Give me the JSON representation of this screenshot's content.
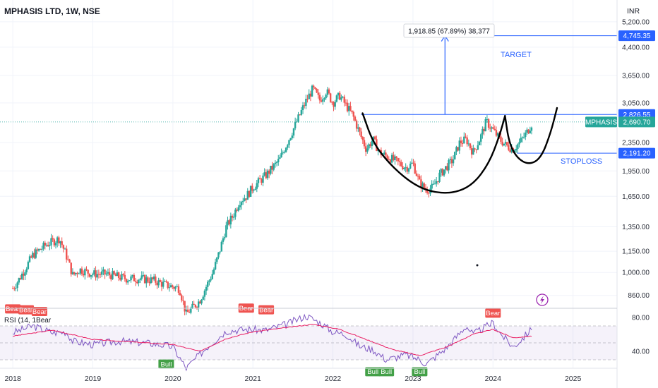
{
  "chart_data": {
    "type": "candlestick",
    "title": "MPHASIS LTD, 1W, NSE",
    "currency": "INR",
    "y_scale": "log",
    "ylim": [
      790,
      6000
    ],
    "y_ticks": [
      "5,200.00",
      "4,400.00",
      "3,650.00",
      "3,050.00",
      "2,350.00",
      "1,950.00",
      "1,650.00",
      "1,350.00",
      "1,150.00",
      "1,000.00",
      "860.00"
    ],
    "x_ticks": [
      "2018",
      "2019",
      "2020",
      "2021",
      "2022",
      "2023",
      "2024",
      "2025"
    ],
    "price_labels": [
      {
        "name": "target",
        "text": "4,745.35",
        "value": 4745.35,
        "color": "#2962ff"
      },
      {
        "name": "resistance",
        "text": "2,826.55",
        "value": 2826.55,
        "color": "#2962ff"
      },
      {
        "name": "symbol",
        "text": "MPHASIS",
        "color": "#26a69a"
      },
      {
        "name": "last",
        "text": "2,690.70",
        "value": 2690.7,
        "color": "#26a69a"
      },
      {
        "name": "stoploss",
        "text": "2,191.20",
        "value": 2191.2,
        "color": "#2962ff"
      }
    ],
    "annotations": {
      "measure": "1,918.85 (67.89%) 38,377",
      "target": "TARGET",
      "stoploss": "STOPLOSS"
    },
    "close_path": [
      [
        "2018-01",
        900
      ],
      [
        "2018-02",
        960
      ],
      [
        "2018-04",
        1120
      ],
      [
        "2018-06",
        1200
      ],
      [
        "2018-08",
        1250
      ],
      [
        "2018-09",
        1120
      ],
      [
        "2018-10",
        980
      ],
      [
        "2018-11",
        1020
      ],
      [
        "2019-01",
        990
      ],
      [
        "2019-03",
        990
      ],
      [
        "2019-06",
        960
      ],
      [
        "2019-08",
        960
      ],
      [
        "2019-10",
        950
      ],
      [
        "2019-12",
        920
      ],
      [
        "2020-02",
        900
      ],
      [
        "2020-03",
        760
      ],
      [
        "2020-05",
        830
      ],
      [
        "2020-07",
        1000
      ],
      [
        "2020-08",
        1150
      ],
      [
        "2020-09",
        1350
      ],
      [
        "2020-10",
        1450
      ],
      [
        "2020-11",
        1600
      ],
      [
        "2020-12",
        1650
      ],
      [
        "2021-01",
        1750
      ],
      [
        "2021-03",
        1900
      ],
      [
        "2021-05",
        2100
      ],
      [
        "2021-07",
        2550
      ],
      [
        "2021-09",
        3100
      ],
      [
        "2021-10",
        3350
      ],
      [
        "2021-11",
        3100
      ],
      [
        "2021-12",
        3300
      ],
      [
        "2022-01",
        3050
      ],
      [
        "2022-02",
        3200
      ],
      [
        "2022-04",
        2800
      ],
      [
        "2022-05",
        2500
      ],
      [
        "2022-06",
        2250
      ],
      [
        "2022-07",
        2400
      ],
      [
        "2022-08",
        2200
      ],
      [
        "2022-10",
        2100
      ],
      [
        "2022-12",
        1990
      ],
      [
        "2023-01",
        2050
      ],
      [
        "2023-02",
        1800
      ],
      [
        "2023-03",
        1720
      ],
      [
        "2023-04",
        1750
      ],
      [
        "2023-05",
        1900
      ],
      [
        "2023-06",
        2000
      ],
      [
        "2023-07",
        2100
      ],
      [
        "2023-08",
        2350
      ],
      [
        "2023-09",
        2400
      ],
      [
        "2023-10",
        2200
      ],
      [
        "2023-11",
        2400
      ],
      [
        "2023-12",
        2700
      ],
      [
        "2024-01",
        2550
      ],
      [
        "2024-02",
        2400
      ],
      [
        "2024-03",
        2300
      ],
      [
        "2024-04",
        2250
      ],
      [
        "2024-05",
        2350
      ],
      [
        "2024-06",
        2500
      ],
      [
        "2024-07",
        2700
      ]
    ],
    "rsi": {
      "label": "RSI (14, 1Bear",
      "y_ticks": [
        "80.00",
        "40.00"
      ],
      "ylim": [
        20,
        90
      ],
      "band": [
        30,
        70
      ],
      "values": [
        [
          "2018-01",
          62
        ],
        [
          "2018-04",
          70
        ],
        [
          "2018-07",
          62
        ],
        [
          "2018-09",
          63
        ],
        [
          "2018-10",
          52
        ],
        [
          "2019-01",
          48
        ],
        [
          "2019-05",
          52
        ],
        [
          "2019-09",
          50
        ],
        [
          "2019-12",
          47
        ],
        [
          "2020-01",
          45
        ],
        [
          "2020-03",
          20
        ],
        [
          "2020-06",
          44
        ],
        [
          "2020-09",
          64
        ],
        [
          "2020-12",
          66
        ],
        [
          "2021-03",
          65
        ],
        [
          "2021-06",
          72
        ],
        [
          "2021-09",
          82
        ],
        [
          "2021-11",
          74
        ],
        [
          "2022-01",
          63
        ],
        [
          "2022-03",
          60
        ],
        [
          "2022-05",
          46
        ],
        [
          "2022-07",
          42
        ],
        [
          "2022-09",
          30
        ],
        [
          "2022-12",
          36
        ],
        [
          "2023-02",
          30
        ],
        [
          "2023-03",
          25
        ],
        [
          "2023-06",
          44
        ],
        [
          "2023-09",
          70
        ],
        [
          "2023-10",
          60
        ],
        [
          "2024-01",
          74
        ],
        [
          "2024-02",
          62
        ],
        [
          "2024-04",
          45
        ],
        [
          "2024-05",
          52
        ],
        [
          "2024-07",
          68
        ]
      ],
      "ma": [
        [
          "2018-01",
          58
        ],
        [
          "2018-07",
          65
        ],
        [
          "2019-01",
          54
        ],
        [
          "2019-09",
          50
        ],
        [
          "2020-01",
          48
        ],
        [
          "2020-05",
          40
        ],
        [
          "2020-09",
          55
        ],
        [
          "2021-01",
          63
        ],
        [
          "2021-06",
          68
        ],
        [
          "2021-10",
          72
        ],
        [
          "2022-02",
          66
        ],
        [
          "2022-06",
          54
        ],
        [
          "2022-10",
          42
        ],
        [
          "2023-02",
          35
        ],
        [
          "2023-06",
          45
        ],
        [
          "2023-10",
          60
        ],
        [
          "2024-01",
          66
        ],
        [
          "2024-04",
          56
        ],
        [
          "2024-07",
          58
        ]
      ],
      "signals": [
        {
          "text": "Bear",
          "date": "2018-01",
          "value": 83,
          "kind": "bear"
        },
        {
          "text": "Bear",
          "date": "2018-03",
          "value": 82,
          "kind": "bear"
        },
        {
          "text": "Bear",
          "date": "2018-05",
          "value": 80,
          "kind": "bear"
        },
        {
          "text": "Bull",
          "date": "2019-12",
          "value": 32,
          "kind": "bull"
        },
        {
          "text": "Bear",
          "date": "2020-12",
          "value": 84,
          "kind": "bear"
        },
        {
          "text": "Bear",
          "date": "2021-03",
          "value": 82,
          "kind": "bear"
        },
        {
          "text": "Bull",
          "date": "2022-07",
          "value": 23,
          "kind": "bull"
        },
        {
          "text": "Bull",
          "date": "2022-09",
          "value": 23,
          "kind": "bull"
        },
        {
          "text": "Bull",
          "date": "2023-02",
          "value": 23,
          "kind": "bull"
        },
        {
          "text": "Bear",
          "date": "2024-01",
          "value": 78,
          "kind": "bear"
        }
      ]
    },
    "colors": {
      "up": "#26a69a",
      "down": "#ef5350",
      "rsi": "#7e57c2",
      "rsi_ma": "#e91e63",
      "drawing": "#2962ff",
      "pattern": "#000000"
    }
  }
}
